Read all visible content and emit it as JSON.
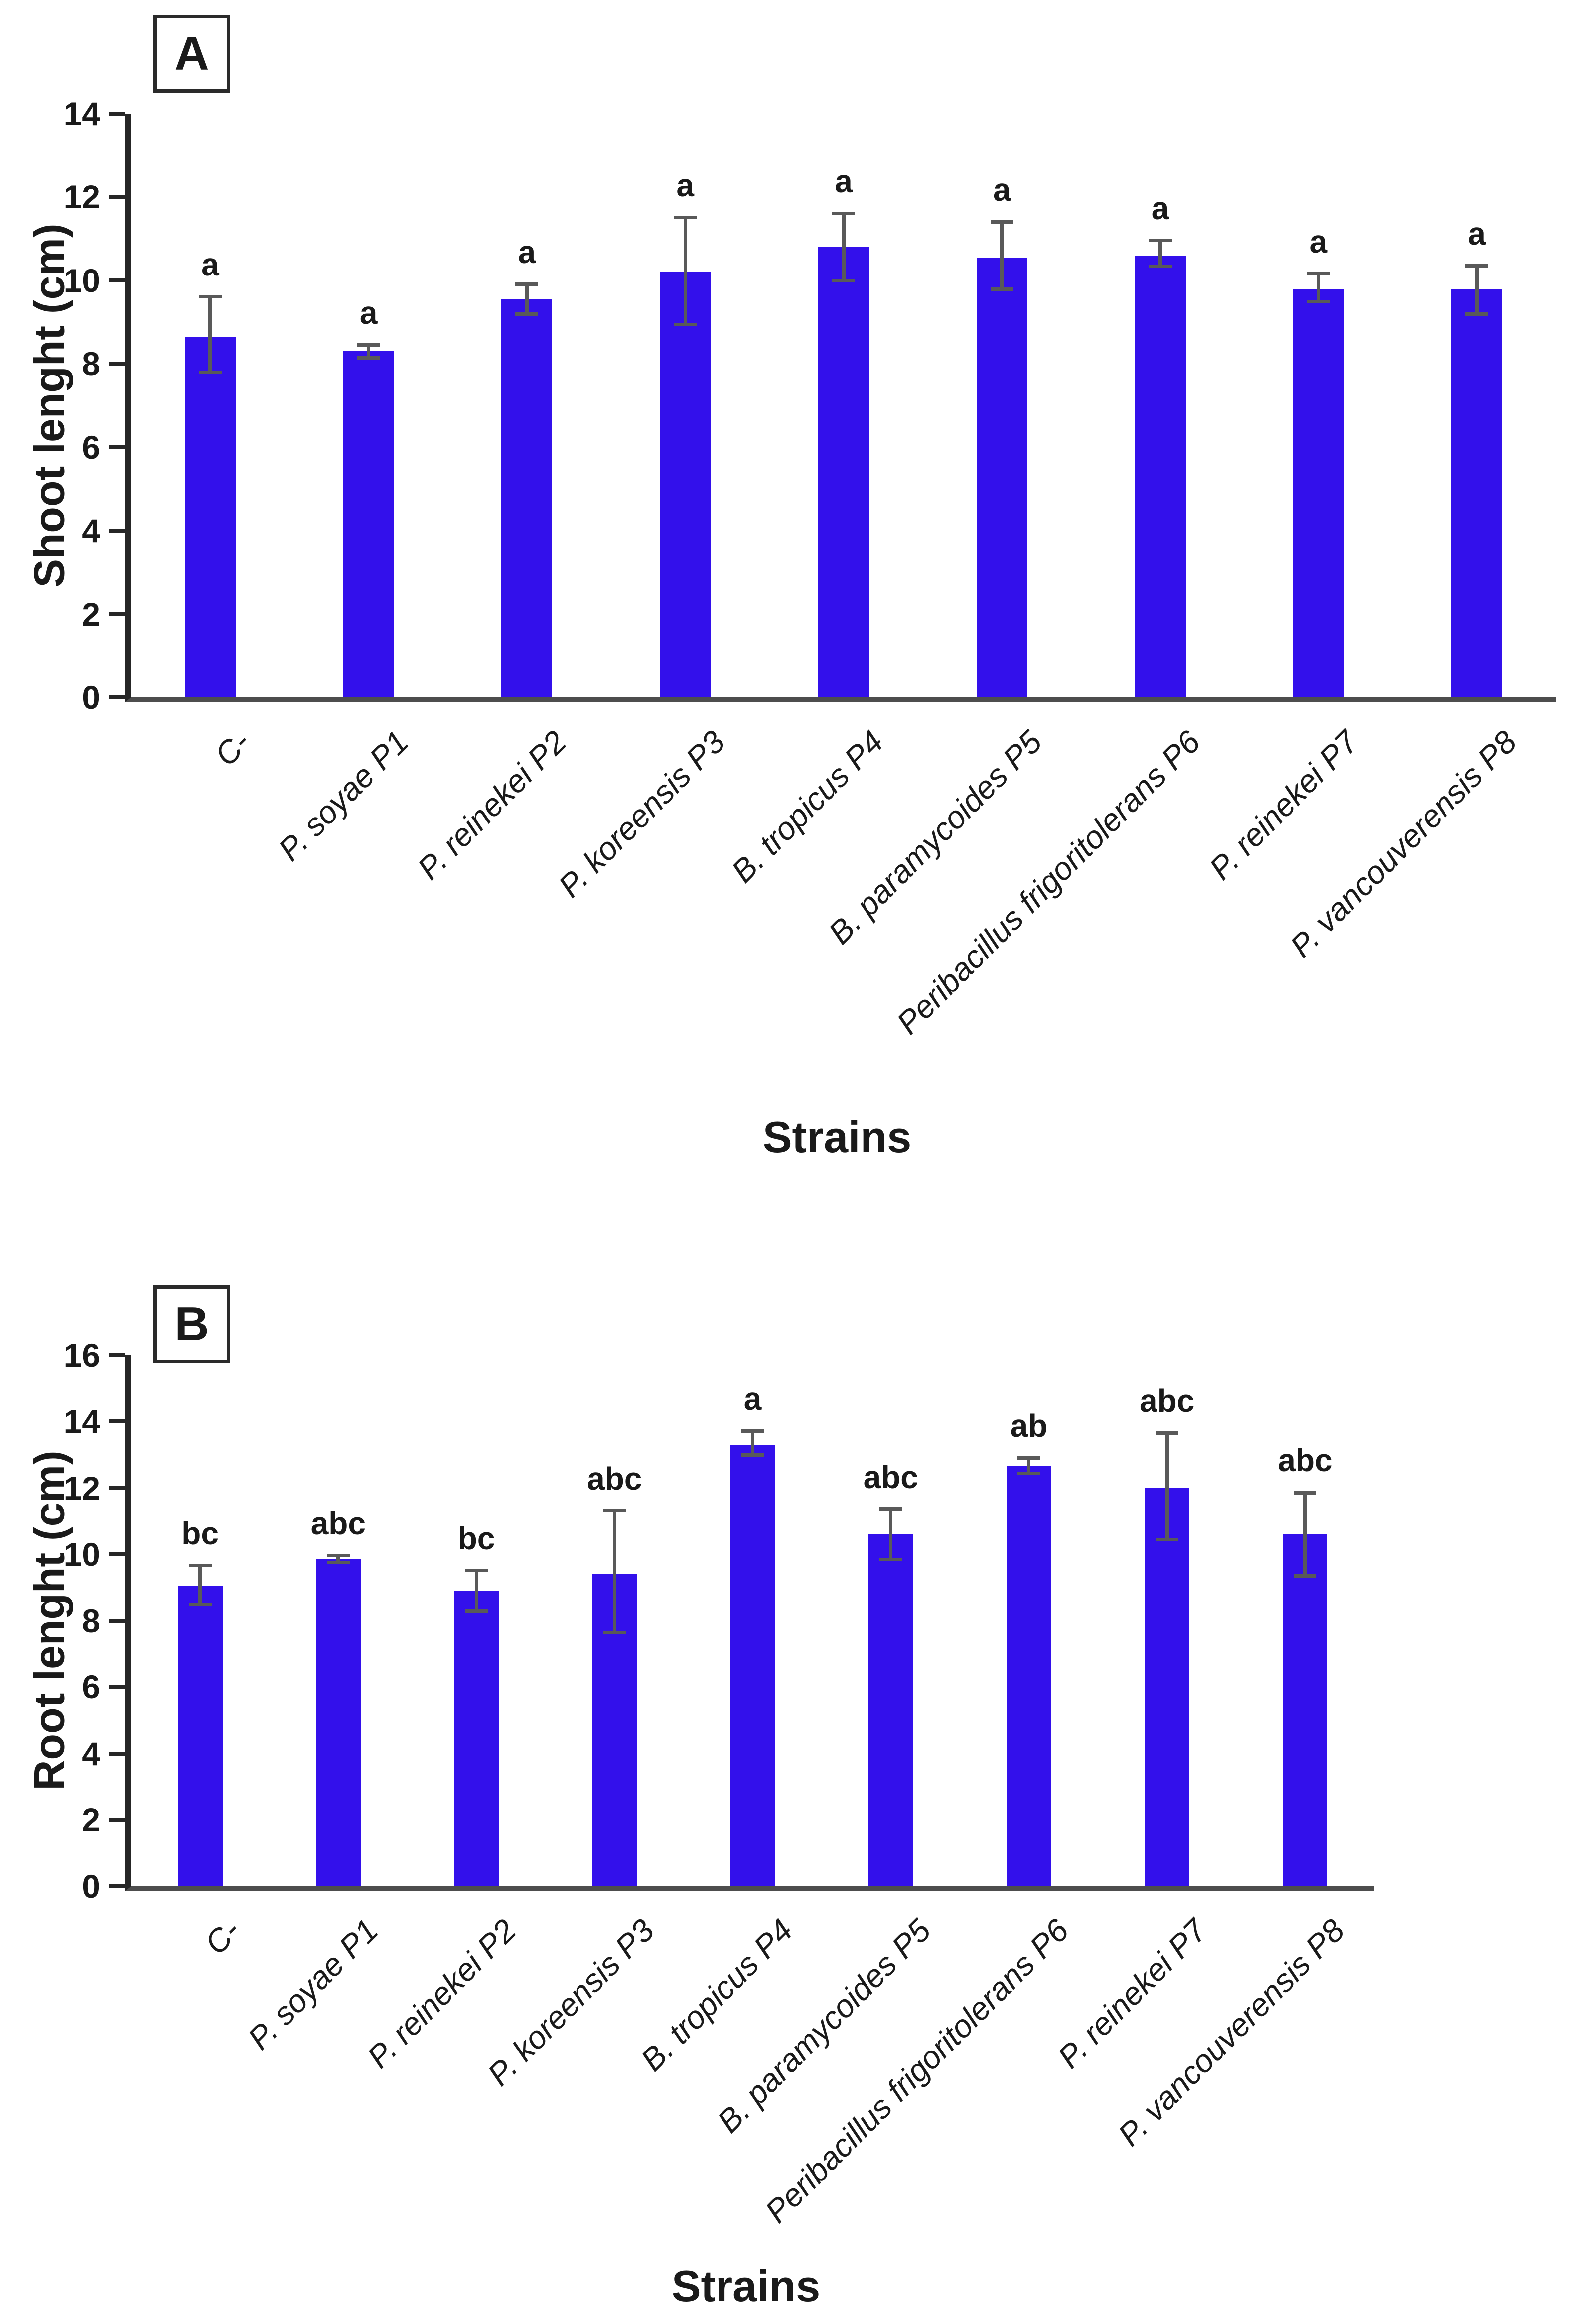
{
  "style": {
    "bar_color": "#3310EB",
    "error_bar_color": "#595959",
    "y_axis_color": "#262626",
    "x_axis_color": "#4d4d4d"
  },
  "chart_data": [
    {
      "type": "bar",
      "panel_label": "A",
      "xlabel": "Strains",
      "ylabel": "Shoot lenght (cm)",
      "ylim": [
        0,
        14
      ],
      "yticks": [
        0,
        2,
        4,
        6,
        8,
        10,
        12,
        14
      ],
      "grid": false,
      "legend": false,
      "categories": [
        "C-",
        "P. soyae P1",
        "P. reinekei P2",
        "P. koreensis P3",
        "B. tropicus P4",
        "B. paramycoides P5",
        "Peribacillus frigoritolerans P6",
        "P. reinekei P7",
        "P. vancouverensis P8"
      ],
      "values": [
        8.65,
        8.3,
        9.55,
        10.2,
        10.8,
        10.55,
        10.6,
        9.8,
        9.8
      ],
      "error_low": [
        7.8,
        8.15,
        9.2,
        8.95,
        10.0,
        9.8,
        10.35,
        9.5,
        9.2
      ],
      "error_high": [
        9.6,
        8.45,
        9.9,
        11.5,
        11.6,
        11.4,
        10.95,
        10.15,
        10.35
      ],
      "sig_letters": [
        "a",
        "a",
        "a",
        "a",
        "a",
        "a",
        "a",
        "a",
        "a"
      ]
    },
    {
      "type": "bar",
      "panel_label": "B",
      "xlabel": "Strains",
      "ylabel": "Root lenght (cm)",
      "ylim": [
        0,
        16
      ],
      "yticks": [
        0,
        2,
        4,
        6,
        8,
        10,
        12,
        14,
        16
      ],
      "grid": false,
      "legend": false,
      "categories": [
        "C-",
        "P. soyae P1",
        "P. reinekei P2",
        "P. koreensis P3",
        "B. tropicus P4",
        "B. paramycoides P5",
        "Peribacillus frigoritolerans P6",
        "P. reinekei P7",
        "P. vancouverensis P8"
      ],
      "values": [
        9.05,
        9.85,
        8.9,
        9.4,
        13.3,
        10.6,
        12.65,
        12.0,
        10.6
      ],
      "error_low": [
        8.5,
        9.75,
        8.3,
        7.65,
        13.0,
        9.85,
        12.45,
        10.45,
        9.35
      ],
      "error_high": [
        9.65,
        9.95,
        9.5,
        11.3,
        13.7,
        11.35,
        12.9,
        13.65,
        11.85
      ],
      "sig_letters": [
        "bc",
        "abc",
        "bc",
        "abc",
        "a",
        "abc",
        "ab",
        "abc",
        "abc"
      ]
    }
  ]
}
